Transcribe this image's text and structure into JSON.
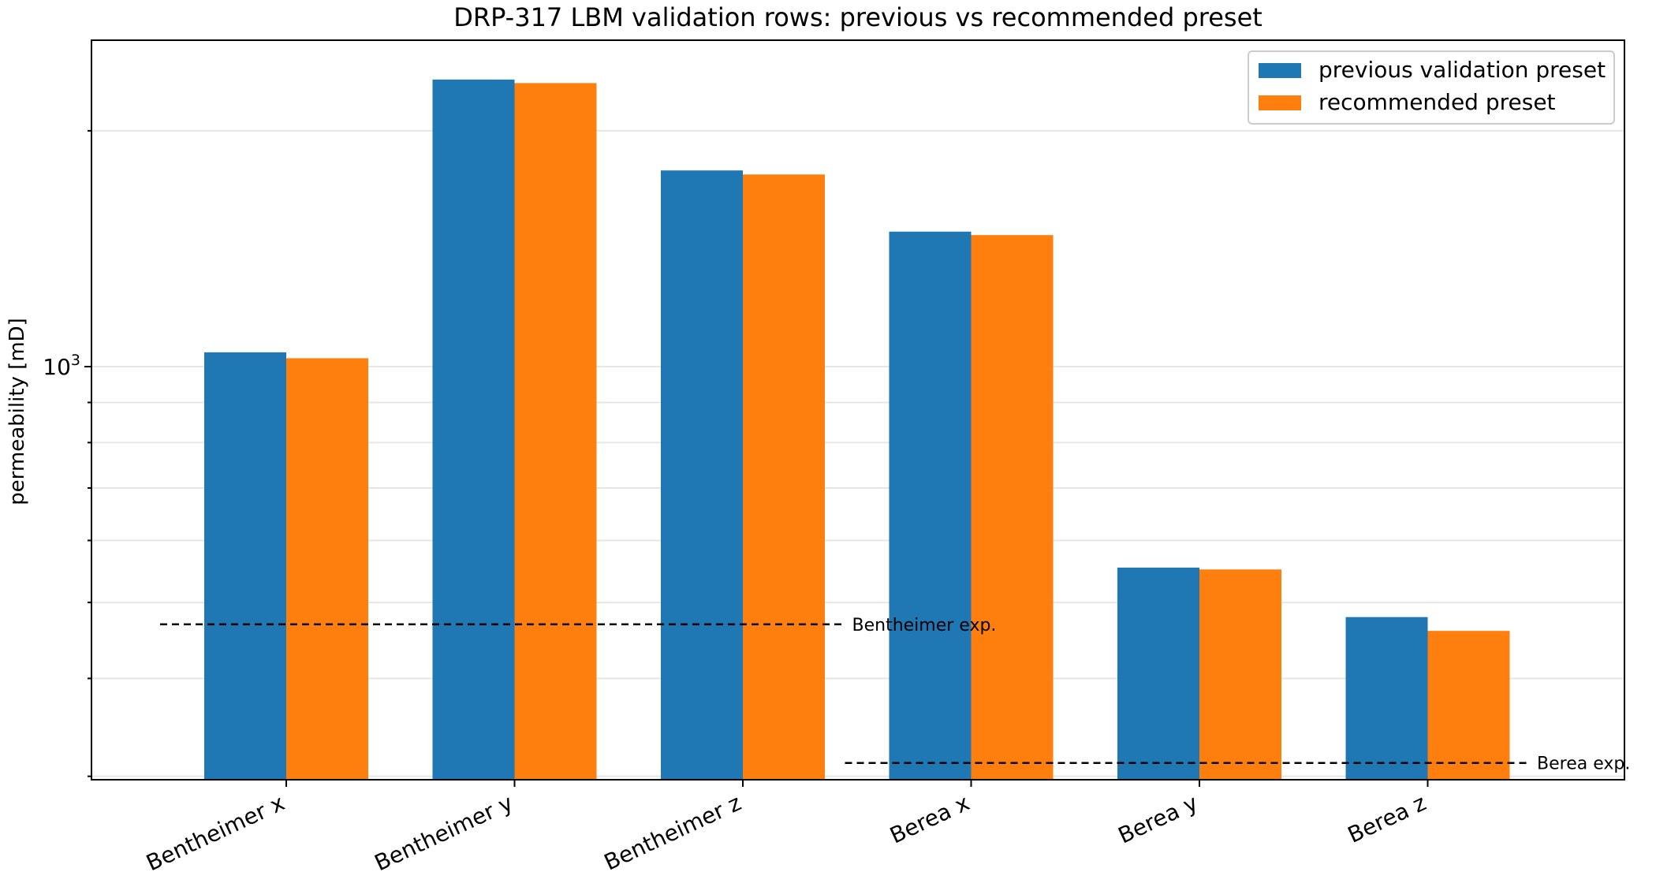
{
  "chart_data": {
    "type": "bar",
    "title": "DRP-317 LBM validation rows: previous vs recommended preset",
    "xlabel": "",
    "ylabel": "permeability [mD]",
    "yscale": "log",
    "ylim": [
      297,
      2610
    ],
    "ytick_major": {
      "value": 1000,
      "base": "10",
      "exp": "3"
    },
    "grid": "y (minor)",
    "legend_position": "top-right",
    "categories": [
      "Bentheimer x",
      "Bentheimer y",
      "Bentheimer z",
      "Berea x",
      "Berea y",
      "Berea z"
    ],
    "series": [
      {
        "name": "previous validation preset",
        "color": "#1f77b4",
        "values": [
          1043,
          2325,
          1780,
          1487,
          554,
          479
        ]
      },
      {
        "name": "recommended preset",
        "color": "#ff7f0e",
        "values": [
          1025,
          2301,
          1759,
          1472,
          551,
          460
        ]
      }
    ],
    "reference_lines": [
      {
        "label": "Bentheimer exp.",
        "value": 469,
        "from_category": 0,
        "to_category": 3
      },
      {
        "label": "Berea exp.",
        "value": 312,
        "from_category": 3,
        "to_category": 6
      }
    ]
  }
}
